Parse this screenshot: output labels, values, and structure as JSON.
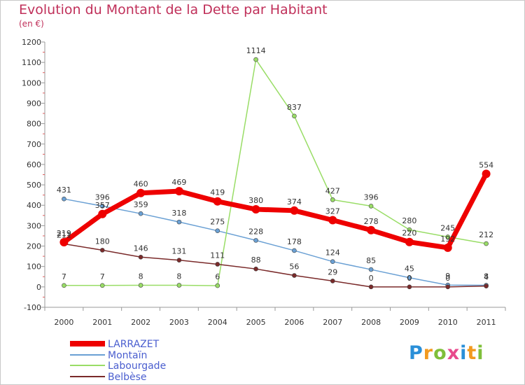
{
  "title": "Evolution du Montant de la Dette par Habitant",
  "subtitle": "(en €)",
  "logo": {
    "letters": [
      {
        "ch": "P",
        "color": "#2a8fd8"
      },
      {
        "ch": "r",
        "color": "#f29a1f"
      },
      {
        "ch": "o",
        "color": "#7fbf3a"
      },
      {
        "ch": "x",
        "color": "#e84a8c"
      },
      {
        "ch": "i",
        "color": "#2a8fd8"
      },
      {
        "ch": "t",
        "color": "#f29a1f"
      },
      {
        "ch": "i",
        "color": "#7fbf3a"
      }
    ]
  },
  "chart_data": {
    "type": "line",
    "x": [
      "2000",
      "2001",
      "2002",
      "2003",
      "2004",
      "2005",
      "2006",
      "2007",
      "2008",
      "2009",
      "2010",
      "2011"
    ],
    "ylim": [
      -100,
      1200
    ],
    "yticks": [
      -100,
      0,
      100,
      200,
      300,
      400,
      500,
      600,
      700,
      800,
      900,
      1000,
      1100,
      1200
    ],
    "grid": false,
    "legend": "bottom-left",
    "series": [
      {
        "name": "LARRAZET",
        "color": "#ee0000",
        "width": 7,
        "marker": 6,
        "values": [
          219,
          357,
          460,
          469,
          419,
          380,
          374,
          327,
          278,
          220,
          192,
          554
        ],
        "labels": [
          "219",
          "357",
          "460",
          "469",
          "419",
          "380",
          "374",
          "327",
          "278",
          "220",
          "192",
          "554"
        ]
      },
      {
        "name": "Montaïn",
        "color": "#6aa0d4",
        "width": 1.5,
        "marker": 3,
        "values": [
          431,
          396,
          359,
          318,
          275,
          228,
          178,
          124,
          85,
          45,
          9,
          8
        ],
        "labels": [
          "431",
          "396",
          "359",
          "318",
          "275",
          "228",
          "178",
          "124",
          "85",
          "45",
          "9",
          "8"
        ]
      },
      {
        "name": "Labourgade",
        "color": "#99dd66",
        "width": 1.5,
        "marker": 3,
        "values": [
          7,
          7,
          8,
          8,
          6,
          1114,
          837,
          427,
          396,
          280,
          245,
          212
        ],
        "labels": [
          "7",
          "7",
          "8",
          "8",
          "6",
          "1114",
          "837",
          "427",
          "396",
          "280",
          "245",
          "212"
        ]
      },
      {
        "name": "Belbèse",
        "color": "#7a2a2a",
        "width": 1.5,
        "marker": 3,
        "values": [
          211,
          180,
          146,
          131,
          111,
          88,
          56,
          29,
          0,
          0,
          0,
          4
        ],
        "labels": [
          "211",
          "180",
          "146",
          "131",
          "111",
          "88",
          "56",
          "29",
          "0",
          "0",
          "0",
          "4"
        ]
      }
    ]
  }
}
